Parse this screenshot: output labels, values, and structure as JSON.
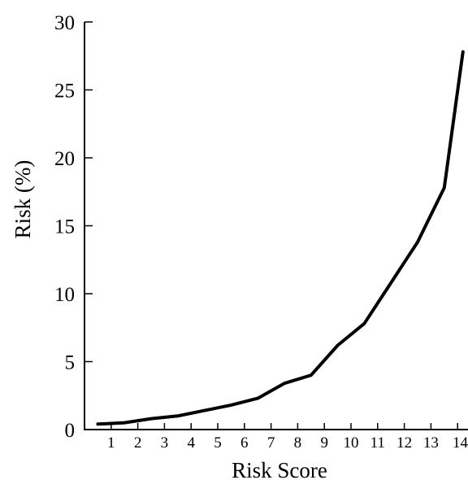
{
  "chart_data": {
    "type": "line",
    "xlabel": "Risk Score",
    "ylabel": "Risk (%)",
    "xlim": [
      0,
      14
    ],
    "ylim": [
      0,
      30
    ],
    "xticks": [
      1,
      2,
      3,
      4,
      5,
      6,
      7,
      8,
      9,
      10,
      11,
      12,
      13,
      14
    ],
    "xtick_labels": [
      "1",
      "2",
      "3",
      "4",
      "5",
      "6",
      "7",
      "8",
      "9",
      "10",
      "11",
      "12",
      "13",
      "14"
    ],
    "yticks": [
      0,
      5,
      10,
      15,
      20,
      25,
      30
    ],
    "ytick_labels": [
      "0",
      "5",
      "10",
      "15",
      "20",
      "25",
      "30"
    ],
    "grid": false,
    "series": [
      {
        "color": "#000000",
        "x": [
          0.5,
          1.5,
          2.5,
          3.5,
          4.5,
          5.5,
          6.5,
          7.5,
          8.5,
          9.5,
          10.5,
          11.5,
          12.5,
          13.5,
          14.2
        ],
        "y": [
          0.4,
          0.5,
          0.8,
          1.0,
          1.4,
          1.8,
          2.3,
          3.4,
          4.0,
          6.2,
          7.8,
          10.8,
          13.8,
          17.8,
          27.8
        ]
      }
    ]
  }
}
